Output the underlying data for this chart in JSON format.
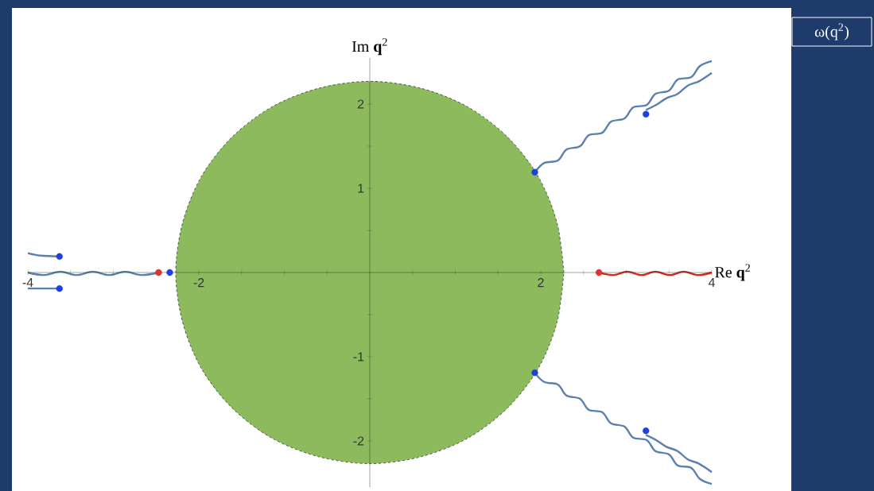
{
  "chart_data": {
    "type": "line",
    "xlabel": "Re **q**$^{2}$",
    "ylabel": "Im **q**$^{2}$",
    "annotations": [
      "ω(q$^{2}$)"
    ],
    "xlim": [
      -4,
      4
    ],
    "ylim": [
      -2.55,
      2.55
    ],
    "xticks": [
      -4,
      {
        "value": -3.5,
        "label": null
      },
      {
        "value": -3,
        "label": null
      },
      {
        "value": -2.5,
        "label": null
      },
      -2,
      {
        "value": -1.5,
        "label": null
      },
      {
        "value": -1,
        "label": null
      },
      {
        "value": -0.5,
        "label": null
      },
      {
        "value": 0.5,
        "label": null
      },
      {
        "value": 1,
        "label": null
      },
      {
        "value": 1.5,
        "label": null
      },
      2,
      {
        "value": 2.5,
        "label": null
      },
      {
        "value": 3,
        "label": null
      },
      {
        "value": 3.5,
        "label": null
      },
      4
    ],
    "yticks": [
      -2,
      {
        "value": -1.5,
        "label": null
      },
      -1,
      {
        "value": -0.5,
        "label": null
      },
      {
        "value": 0.5,
        "label": null
      },
      1,
      {
        "value": 1.5,
        "label": null
      },
      2
    ],
    "series": [
      {
        "type": "area",
        "color": "#8dba5c",
        "line_style": "dashed",
        "x": [
          2.27,
          2.19,
          1.97,
          1.61,
          1.14,
          0.59,
          0,
          -0.59,
          -1.14,
          -1.61,
          -1.97,
          -2.19,
          -2.27,
          -2.19,
          -1.97,
          -1.61,
          -1.14,
          -0.59,
          0,
          0.59,
          1.14,
          1.61,
          1.97,
          2.19,
          2.27
        ],
        "values": [
          0,
          0.59,
          1.14,
          1.61,
          1.97,
          2.19,
          2.27,
          2.19,
          1.97,
          1.61,
          1.14,
          0.59,
          0,
          -0.59,
          -1.14,
          -1.61,
          -1.97,
          -2.19,
          -2.27,
          -2.19,
          -1.97,
          -1.61,
          -1.14,
          -0.59,
          0
        ]
      },
      {
        "color": "#5b7fb0",
        "x": [
          1.93,
          2.04,
          2.2,
          2.3,
          2.46,
          2.56,
          2.72,
          2.82,
          2.98,
          3.08,
          3.24,
          3.34,
          3.5,
          3.6,
          3.76,
          3.86,
          4
        ],
        "values": [
          1.19,
          1.3,
          1.33,
          1.46,
          1.5,
          1.63,
          1.66,
          1.79,
          1.83,
          1.96,
          1.99,
          2.12,
          2.16,
          2.29,
          2.32,
          2.45,
          2.51
        ]
      },
      {
        "color": "#5b7fb0",
        "x": [
          3.23,
          3.35,
          3.47,
          3.6,
          3.72,
          3.85,
          4
        ],
        "values": [
          1.93,
          1.99,
          2.07,
          2.12,
          2.22,
          2.27,
          2.37
        ]
      },
      {
        "color": "#5b7fb0",
        "x": [
          1.93,
          2.04,
          2.2,
          2.3,
          2.46,
          2.56,
          2.72,
          2.82,
          2.98,
          3.08,
          3.24,
          3.34,
          3.5,
          3.6,
          3.76,
          3.86,
          4
        ],
        "values": [
          -1.19,
          -1.3,
          -1.33,
          -1.46,
          -1.5,
          -1.63,
          -1.66,
          -1.79,
          -1.83,
          -1.96,
          -1.99,
          -2.12,
          -2.16,
          -2.29,
          -2.32,
          -2.45,
          -2.51
        ]
      },
      {
        "color": "#5b7fb0",
        "x": [
          3.23,
          3.35,
          3.47,
          3.6,
          3.72,
          3.85,
          4
        ],
        "values": [
          -1.93,
          -1.99,
          -2.07,
          -2.12,
          -2.22,
          -2.27,
          -2.37
        ]
      },
      {
        "color": "#5b7fb0",
        "x": [
          -4,
          -3.81,
          -3.62,
          -3.43,
          -3.24,
          -3.05,
          -2.86,
          -2.67,
          -2.47
        ],
        "values": [
          0,
          -0.03,
          0.01,
          -0.03,
          0.01,
          -0.03,
          0.01,
          -0.03,
          0
        ]
      },
      {
        "color": "#5b7fb0",
        "x": [
          -4,
          -3.85,
          -3.63
        ],
        "values": [
          0.23,
          0.2,
          0.19
        ]
      },
      {
        "color": "#5b7fb0",
        "x": [
          -4,
          -3.85,
          -3.63
        ],
        "values": [
          -0.19,
          -0.19,
          -0.19
        ]
      },
      {
        "color": "#d42a1e",
        "x": [
          2.68,
          2.85,
          3.01,
          3.18,
          3.34,
          3.51,
          3.67,
          3.84,
          4
        ],
        "values": [
          0,
          -0.03,
          0.01,
          -0.03,
          0.01,
          -0.03,
          0.01,
          -0.03,
          0
        ]
      },
      {
        "type": "scatter",
        "color": "#1f3fe0",
        "x": [
          1.93,
          3.23,
          1.93,
          3.23,
          -2.34,
          -3.63,
          -3.63
        ],
        "values": [
          1.19,
          1.88,
          -1.19,
          -1.88,
          0,
          0.19,
          -0.19
        ]
      },
      {
        "type": "scatter",
        "color": "#e03030",
        "x": [
          -2.47,
          2.68
        ],
        "values": [
          0,
          0
        ]
      }
    ]
  }
}
